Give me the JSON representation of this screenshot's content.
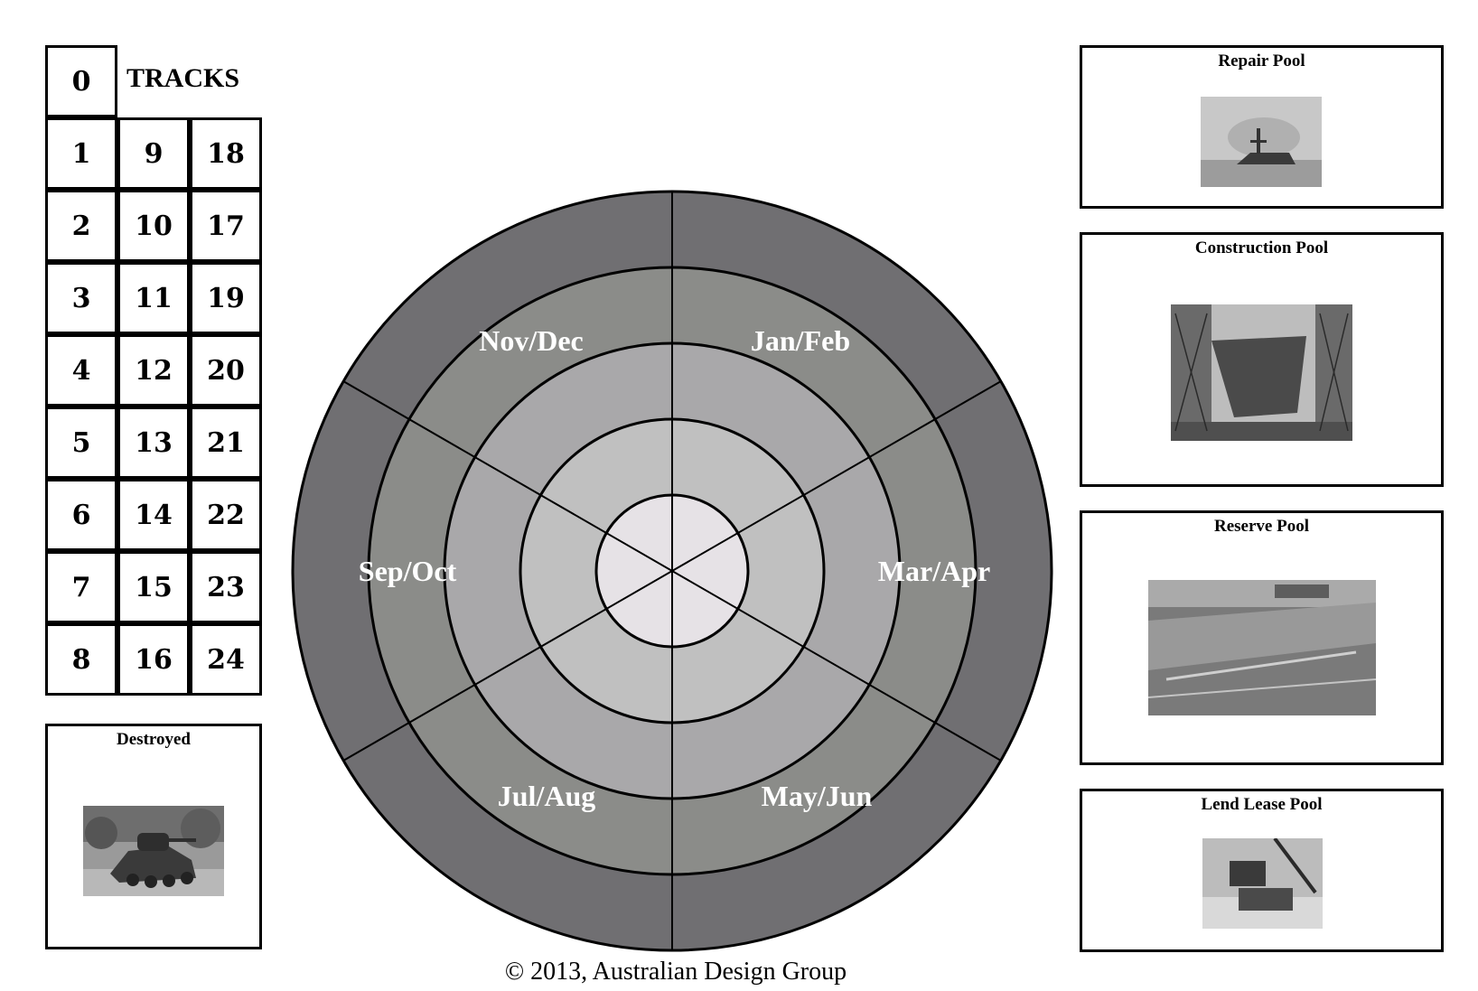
{
  "tracks": {
    "title": "TRACKS",
    "zero": "0",
    "rows": [
      [
        "1",
        "9",
        "18"
      ],
      [
        "2",
        "10",
        "17"
      ],
      [
        "3",
        "11",
        "19"
      ],
      [
        "4",
        "12",
        "20"
      ],
      [
        "5",
        "13",
        "21"
      ],
      [
        "6",
        "14",
        "22"
      ],
      [
        "7",
        "15",
        "23"
      ],
      [
        "8",
        "16",
        "24"
      ]
    ]
  },
  "destroyed": {
    "label": "Destroyed"
  },
  "pools": {
    "repair": {
      "label": "Repair Pool"
    },
    "construction": {
      "label": "Construction Pool"
    },
    "reserve": {
      "label": "Reserve Pool"
    },
    "lend_lease": {
      "label": "Lend Lease Pool"
    }
  },
  "wheel": {
    "seasons": {
      "jan_feb": "Jan/Feb",
      "mar_apr": "Mar/Apr",
      "may_jun": "May/Jun",
      "jul_aug": "Jul/Aug",
      "sep_oct": "Sep/Oct",
      "nov_dec": "Nov/Dec"
    },
    "ring_colors": [
      "#706f72",
      "#8b8c89",
      "#a9a8aa",
      "#c0c0c0",
      "#e6e2e6"
    ]
  },
  "copyright": "© 2013, Australian Design Group"
}
